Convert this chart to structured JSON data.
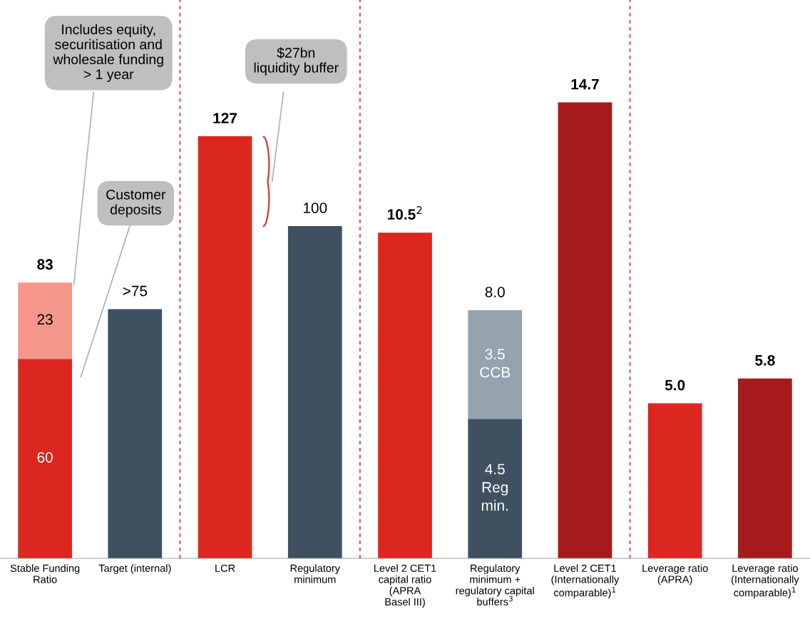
{
  "chart_data": [
    {
      "type": "bar",
      "stacked": true,
      "categories": [
        "Stable Funding\nRatio",
        "Target (internal)"
      ],
      "ylim": [
        0,
        168
      ],
      "tick_labels": "x",
      "series": [
        {
          "colors": [
            "#dc2721",
            "#3f5160"
          ],
          "values": [
            60,
            75
          ],
          "value_labels": [
            "60",
            ">75"
          ]
        },
        {
          "color": "#f4978a",
          "values": [
            23,
            null
          ],
          "value_labels": [
            "23",
            null
          ]
        }
      ],
      "totals": [
        "83",
        null
      ],
      "annotations": [
        "Includes equity,\nsecuritisation and\nwholesale funding\n> 1 year",
        "Customer\ndeposits"
      ]
    },
    {
      "type": "bar",
      "stacked": true,
      "categories": [
        "LCR",
        "Regulatory\nminimum"
      ],
      "ylim": [
        0,
        168
      ],
      "tick_labels": "x",
      "series": [
        {
          "colors": [
            "#dc2721",
            "#3f5160"
          ],
          "values": [
            127,
            100
          ],
          "value_labels": [
            "127",
            "100"
          ]
        }
      ],
      "annotations": [
        "$27bn\nliquidity buffer"
      ]
    },
    {
      "type": "bar",
      "stacked": true,
      "categories": [
        "Level 2 CET1\ncapital ratio\n(APRA\nBasel III)",
        "Regulatory\nminimum +\nregulatory capital\nbuffers$^{3}$",
        "Level 2 CET1\n(Internationally\ncomparable)$^{1}$"
      ],
      "ylim": [
        0,
        18
      ],
      "tick_labels": "x",
      "series": [
        {
          "colors": [
            "#dc2721",
            "#3f5160",
            "#a51b1b"
          ],
          "values": [
            10.5,
            4.5,
            14.7
          ],
          "value_labels": [
            "10.5$^{2}$",
            "4.5\nReg\nmin.",
            "14.7"
          ]
        },
        {
          "color": "#94a3ae",
          "values": [
            null,
            3.5,
            null
          ],
          "value_labels": [
            null,
            "3.5\nCCB",
            null
          ]
        }
      ],
      "totals": [
        null,
        "8.0",
        null
      ]
    },
    {
      "type": "bar",
      "categories": [
        "Leverage ratio\n(APRA)",
        "Leverage ratio\n(Internationally\ncomparable)$^{1}$"
      ],
      "ylim": [
        0,
        18
      ],
      "tick_labels": "x",
      "series": [
        {
          "colors": [
            "#dc2721",
            "#a51b1b"
          ],
          "values": [
            5.0,
            5.8
          ],
          "value_labels": [
            "5.0",
            "5.8"
          ]
        }
      ]
    }
  ]
}
